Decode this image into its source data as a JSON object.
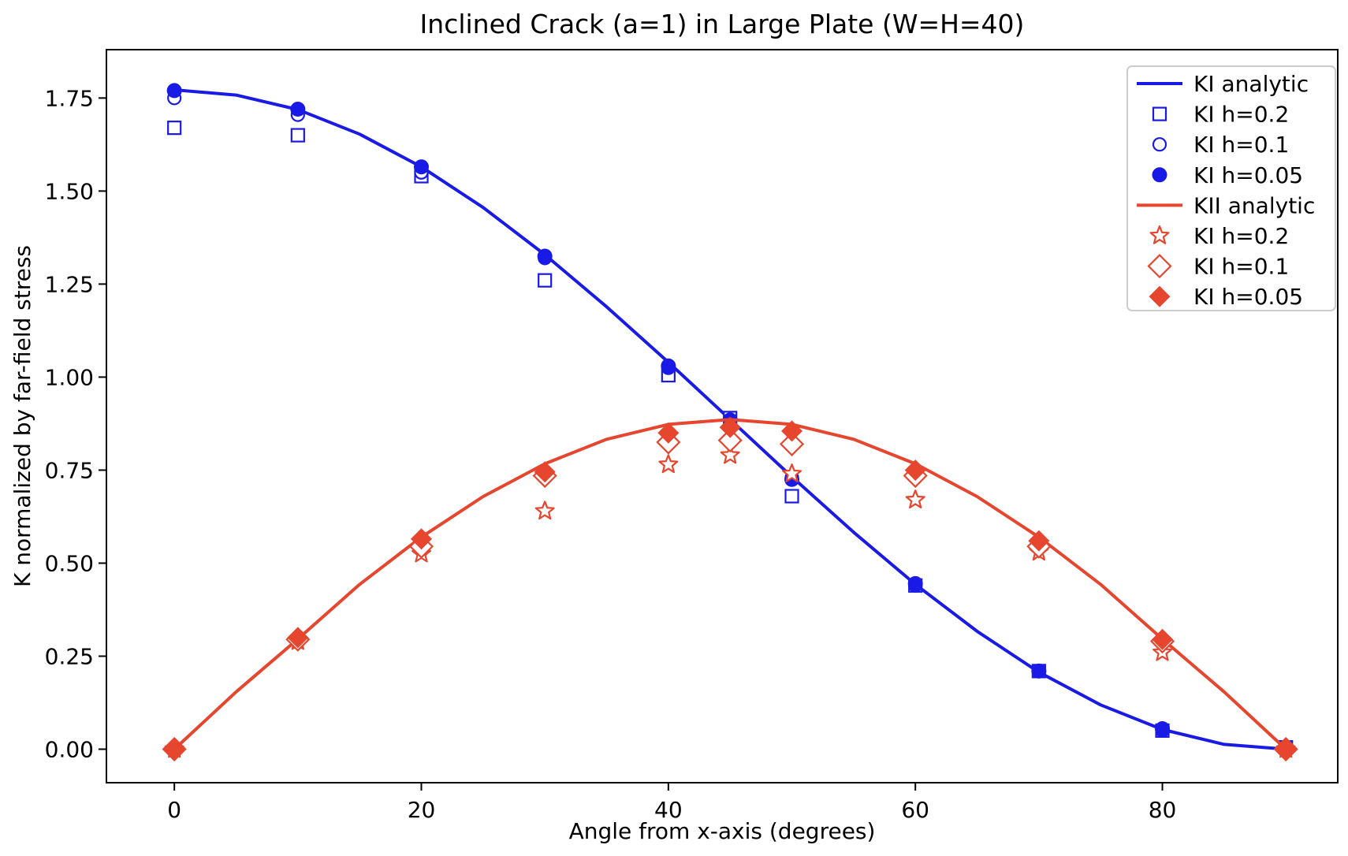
{
  "chart_data": {
    "type": "line",
    "title": "Inclined Crack (a=1) in Large Plate (W=H=40)",
    "xlabel": "Angle from x-axis (degrees)",
    "ylabel": "K normalized by far-field stress",
    "xlim": [
      -5.5,
      94.2
    ],
    "ylim": [
      -0.09,
      1.88
    ],
    "xticks": [
      "0",
      "20",
      "40",
      "60",
      "80"
    ],
    "yticks": [
      "0.00",
      "0.25",
      "0.50",
      "0.75",
      "1.00",
      "1.25",
      "1.50",
      "1.75"
    ],
    "grid": false,
    "legend_position": "upper right",
    "colors": {
      "ki_blue": "#1a1ae6",
      "kii_red": "#e6452e"
    },
    "series": [
      {
        "name": "KI analytic",
        "kind": "line",
        "marker": "none",
        "color": "#1a1ae6",
        "x": [
          0,
          5,
          10,
          15,
          20,
          25,
          30,
          35,
          40,
          45,
          50,
          55,
          60,
          65,
          70,
          75,
          80,
          85,
          90
        ],
        "y": [
          1.772,
          1.758,
          1.719,
          1.653,
          1.565,
          1.456,
          1.329,
          1.189,
          1.04,
          0.886,
          0.732,
          0.583,
          0.443,
          0.317,
          0.207,
          0.119,
          0.053,
          0.013,
          0.0
        ]
      },
      {
        "name": "KI h=0.2",
        "kind": "scatter",
        "marker": "square-open",
        "color": "#1a1ae6",
        "x": [
          0,
          10,
          20,
          30,
          40,
          45,
          50,
          60,
          70,
          80,
          90
        ],
        "y": [
          1.67,
          1.65,
          1.54,
          1.26,
          1.005,
          0.89,
          0.68,
          0.44,
          0.21,
          0.05,
          0.005
        ]
      },
      {
        "name": "KI h=0.1",
        "kind": "scatter",
        "marker": "circle-open",
        "color": "#1a1ae6",
        "x": [
          0,
          10,
          20,
          30,
          40,
          45,
          50,
          60,
          70,
          80,
          90
        ],
        "y": [
          1.75,
          1.705,
          1.55,
          1.32,
          1.025,
          0.885,
          0.73,
          0.44,
          0.21,
          0.05,
          0.005
        ]
      },
      {
        "name": "KI h=0.05",
        "kind": "scatter",
        "marker": "circle-filled",
        "color": "#1a1ae6",
        "x": [
          0,
          10,
          20,
          30,
          40,
          45,
          50,
          60,
          70,
          80,
          90
        ],
        "y": [
          1.77,
          1.72,
          1.565,
          1.325,
          1.03,
          0.885,
          0.725,
          0.445,
          0.21,
          0.055,
          0.005
        ]
      },
      {
        "name": "KII analytic",
        "kind": "line",
        "marker": "none",
        "color": "#e6452e",
        "x": [
          0,
          5,
          10,
          15,
          20,
          25,
          30,
          35,
          40,
          45,
          50,
          55,
          60,
          65,
          70,
          75,
          80,
          85,
          90
        ],
        "y": [
          0.0,
          0.154,
          0.296,
          0.443,
          0.57,
          0.679,
          0.767,
          0.833,
          0.873,
          0.886,
          0.873,
          0.833,
          0.767,
          0.679,
          0.57,
          0.443,
          0.296,
          0.154,
          0.0
        ]
      },
      {
        "name": "KI h=0.2",
        "kind": "scatter",
        "marker": "star-open",
        "color": "#e6452e",
        "x": [
          0,
          10,
          20,
          30,
          40,
          45,
          50,
          60,
          70,
          80,
          90
        ],
        "y": [
          0.0,
          0.29,
          0.525,
          0.64,
          0.765,
          0.79,
          0.74,
          0.67,
          0.53,
          0.26,
          0.0
        ]
      },
      {
        "name": "KI h=0.1",
        "kind": "scatter",
        "marker": "diamond-open",
        "color": "#e6452e",
        "x": [
          0,
          10,
          20,
          30,
          40,
          45,
          50,
          60,
          70,
          80,
          90
        ],
        "y": [
          0.0,
          0.295,
          0.545,
          0.735,
          0.825,
          0.83,
          0.82,
          0.735,
          0.545,
          0.29,
          0.0
        ]
      },
      {
        "name": "KI h=0.05",
        "kind": "scatter",
        "marker": "diamond-filled",
        "color": "#e6452e",
        "x": [
          0,
          10,
          20,
          30,
          40,
          45,
          50,
          60,
          70,
          80,
          90
        ],
        "y": [
          0.0,
          0.3,
          0.565,
          0.745,
          0.85,
          0.865,
          0.855,
          0.75,
          0.56,
          0.295,
          0.0
        ]
      }
    ]
  }
}
